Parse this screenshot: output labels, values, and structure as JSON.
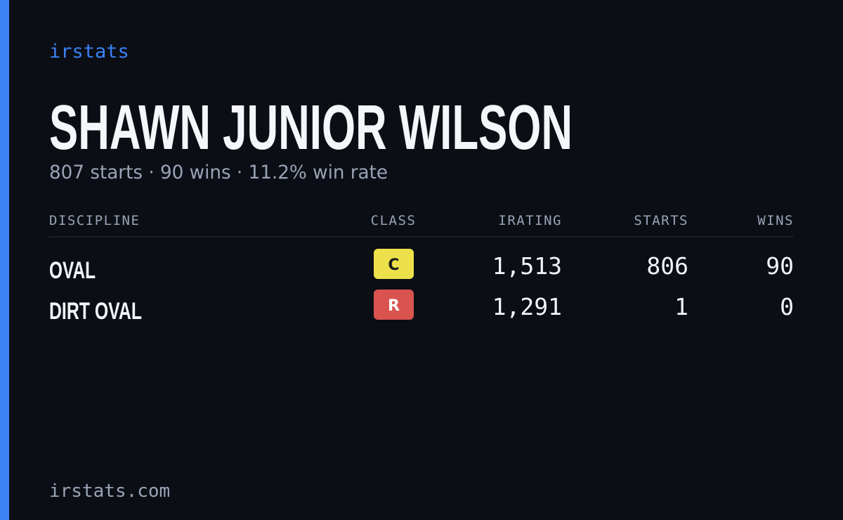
{
  "brand": "irstats",
  "player": {
    "name": "SHAWN JUNIOR WILSON",
    "summary": "807 starts · 90 wins · 11.2% win rate"
  },
  "table": {
    "columns": [
      "DISCIPLINE",
      "CLASS",
      "IRATING",
      "STARTS",
      "WINS"
    ],
    "rows": [
      [
        "OVAL",
        "C",
        "1,513",
        "806",
        "90"
      ],
      [
        "DIRT OVAL",
        "R",
        "1,291",
        "1",
        "0"
      ]
    ]
  },
  "footer": "irstats.com"
}
